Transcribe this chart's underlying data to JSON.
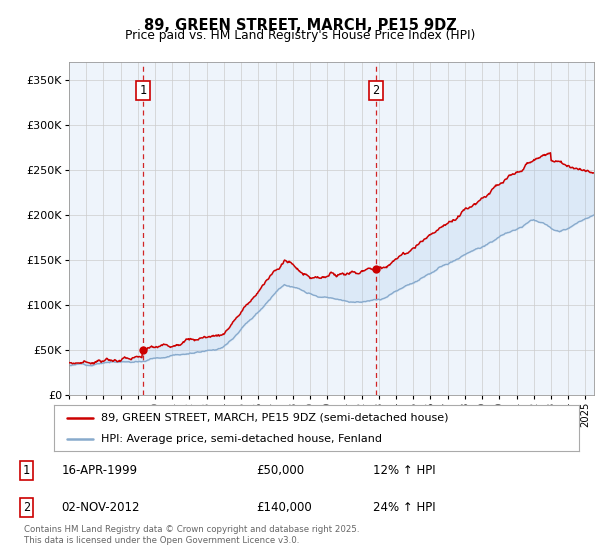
{
  "title": "89, GREEN STREET, MARCH, PE15 9DZ",
  "subtitle": "Price paid vs. HM Land Registry's House Price Index (HPI)",
  "legend_line1": "89, GREEN STREET, MARCH, PE15 9DZ (semi-detached house)",
  "legend_line2": "HPI: Average price, semi-detached house, Fenland",
  "annotation1_label": "1",
  "annotation1_date": "16-APR-1999",
  "annotation1_price": "£50,000",
  "annotation1_hpi": "12% ↑ HPI",
  "annotation2_label": "2",
  "annotation2_date": "02-NOV-2012",
  "annotation2_price": "£140,000",
  "annotation2_hpi": "24% ↑ HPI",
  "footnote": "Contains HM Land Registry data © Crown copyright and database right 2025.\nThis data is licensed under the Open Government Licence v3.0.",
  "red_color": "#cc0000",
  "blue_color": "#88aacc",
  "fill_color": "#ddeeff",
  "vline_color": "#cc0000",
  "grid_color": "#cccccc",
  "bg_color": "#eef4fb",
  "ylim": [
    0,
    370000
  ],
  "yticks": [
    0,
    50000,
    100000,
    150000,
    200000,
    250000,
    300000,
    350000
  ],
  "sale1_year": 1999.29,
  "sale1_value": 50000,
  "sale2_year": 2012.84,
  "sale2_value": 140000,
  "xstart": 1995,
  "xend": 2025.5
}
